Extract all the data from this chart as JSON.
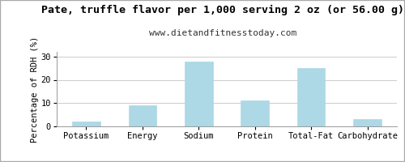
{
  "title": "Pate, truffle flavor per 1,000 serving 2 oz (or 56.00 g)",
  "subtitle": "www.dietandfitnesstoday.com",
  "categories": [
    "Potassium",
    "Energy",
    "Sodium",
    "Protein",
    "Total-Fat",
    "Carbohydrate"
  ],
  "values": [
    2,
    9,
    28,
    11,
    25,
    3
  ],
  "bar_color": "#add8e6",
  "bar_edge_color": "#add8e6",
  "ylabel": "Percentage of RDH (%)",
  "ylim": [
    0,
    32
  ],
  "yticks": [
    0,
    10,
    20,
    30
  ],
  "background_color": "#ffffff",
  "outer_border_color": "#aaaaaa",
  "title_fontsize": 9.5,
  "subtitle_fontsize": 8,
  "ylabel_fontsize": 7.5,
  "tick_fontsize": 7.5,
  "grid_color": "#cccccc",
  "title_font": "monospace",
  "subtitle_font": "monospace"
}
